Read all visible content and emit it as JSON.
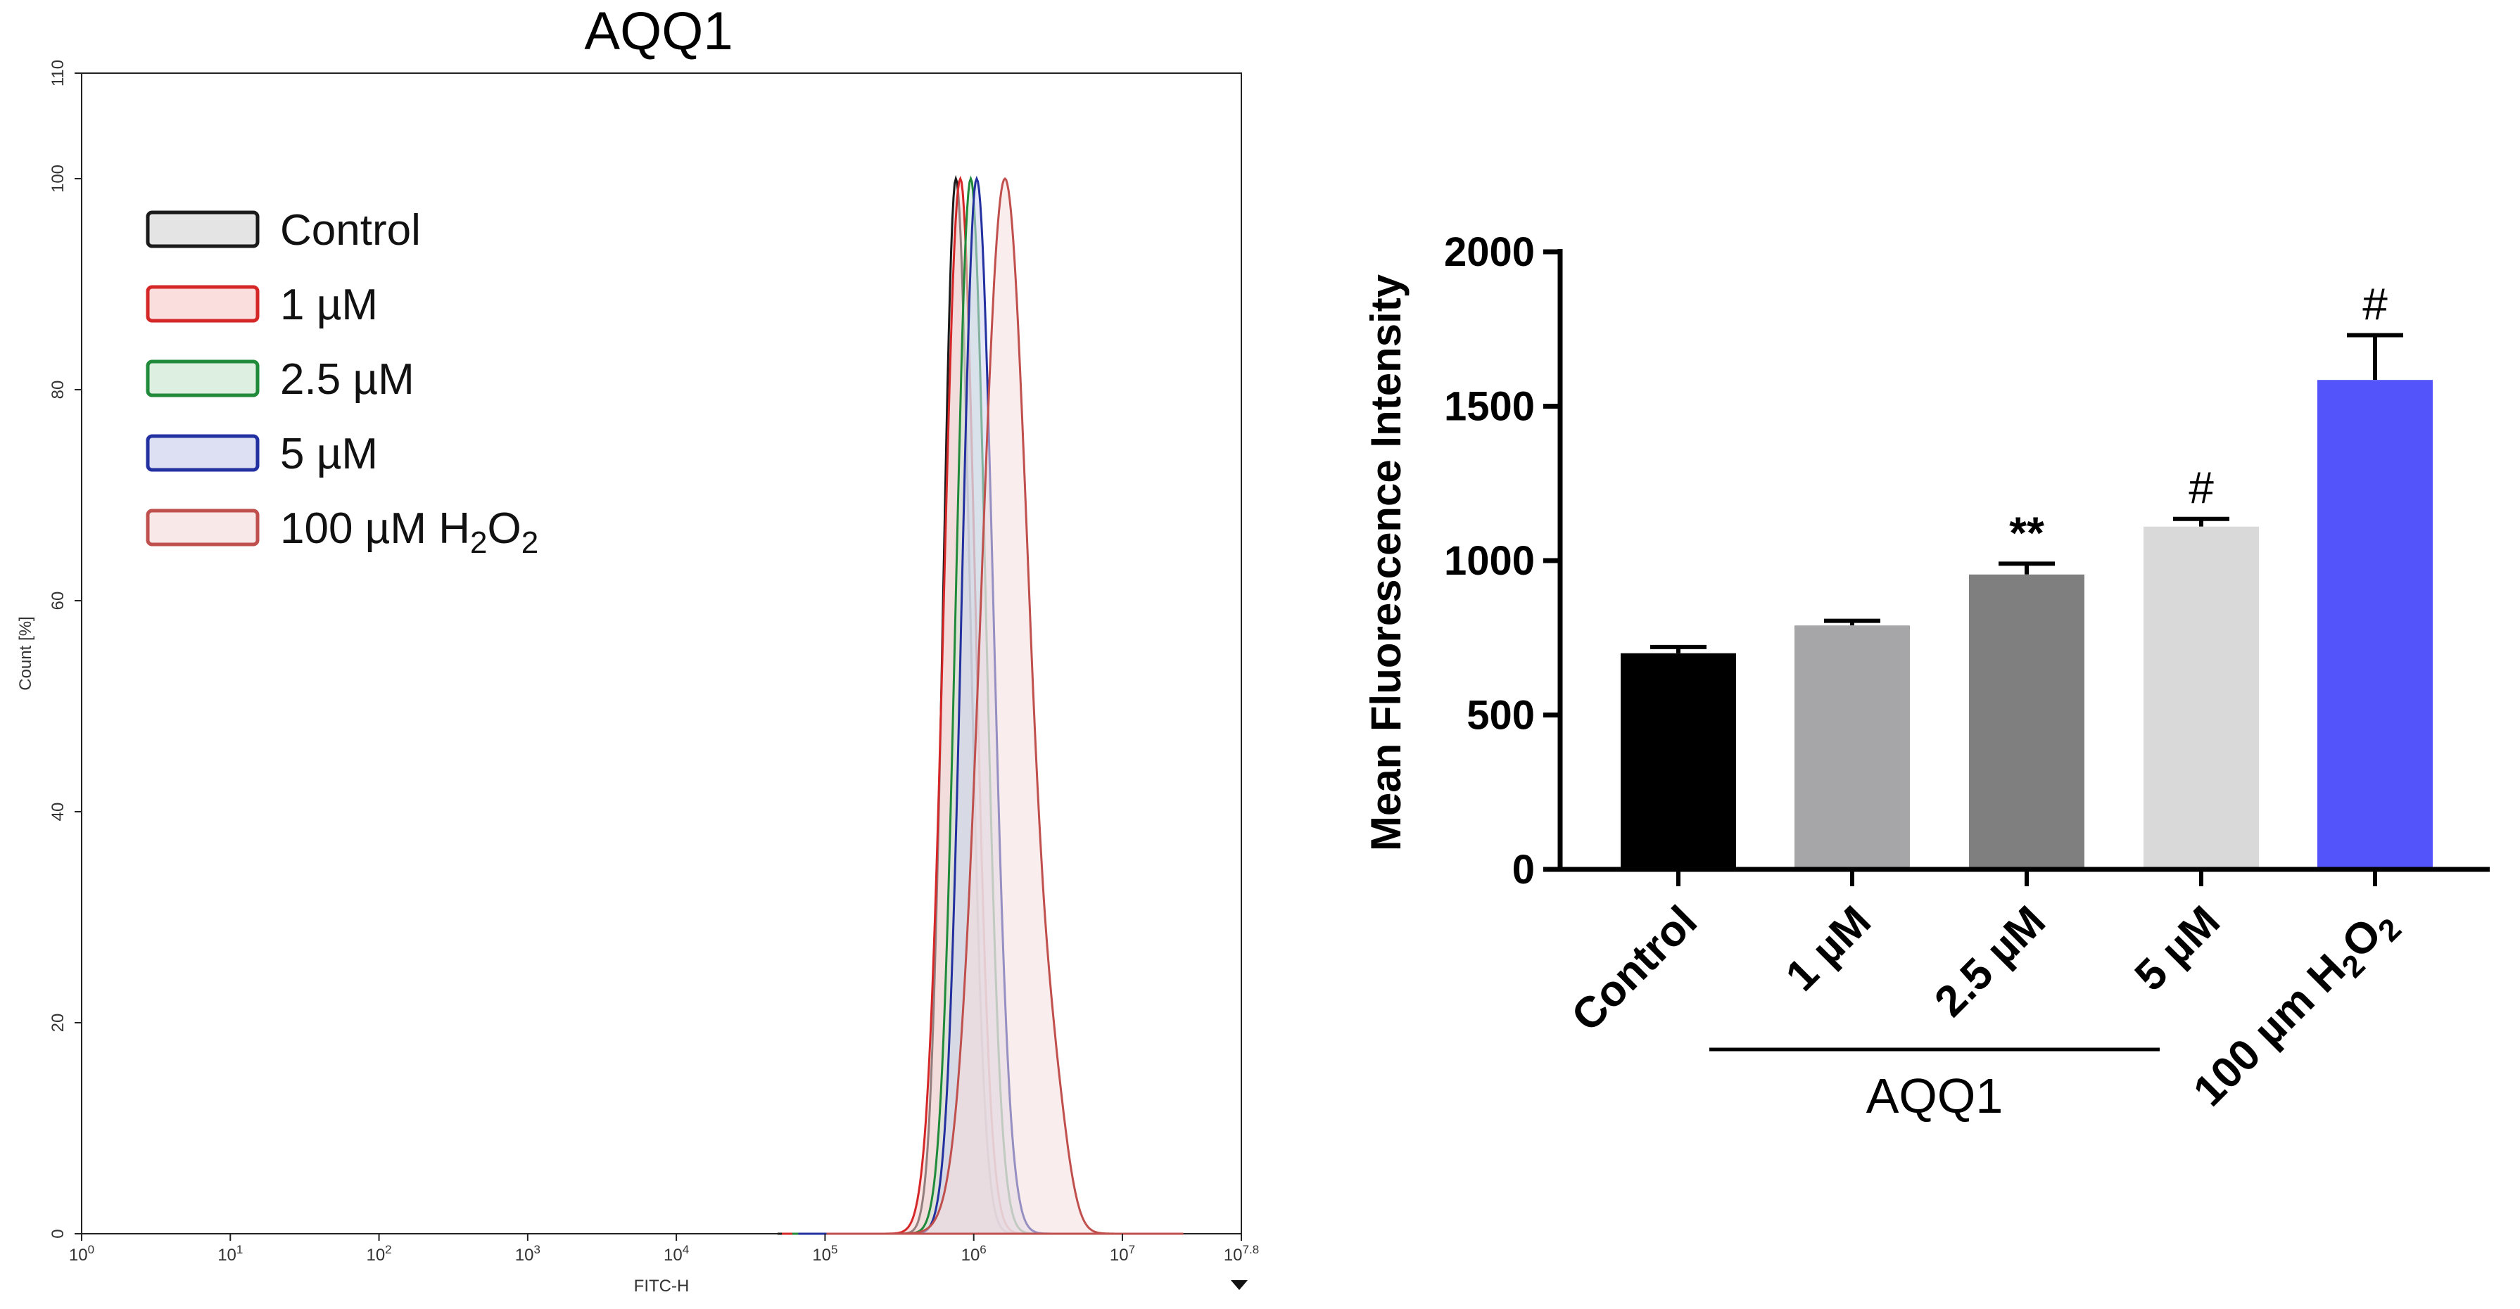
{
  "chart_data": [
    {
      "type": "area",
      "title": "AQQ1",
      "xlabel": "FITC-H",
      "ylabel": "Count [%]",
      "x_scale": "log10",
      "xlim": [
        0,
        7.8
      ],
      "ylim": [
        0,
        110
      ],
      "x_ticks": [
        {
          "exp": 0,
          "base": "10",
          "sup": "0"
        },
        {
          "exp": 1,
          "base": "10",
          "sup": "1"
        },
        {
          "exp": 2,
          "base": "10",
          "sup": "2"
        },
        {
          "exp": 3,
          "base": "10",
          "sup": "3"
        },
        {
          "exp": 4,
          "base": "10",
          "sup": "4"
        },
        {
          "exp": 5,
          "base": "10",
          "sup": "5"
        },
        {
          "exp": 6,
          "base": "10",
          "sup": "6"
        },
        {
          "exp": 7,
          "base": "10",
          "sup": "7"
        },
        {
          "exp": 7.8,
          "base": "10",
          "sup": "7.8"
        }
      ],
      "y_ticks": [
        0,
        20,
        40,
        60,
        80,
        100,
        110
      ],
      "series": [
        {
          "name": "Control",
          "label": "Control",
          "stroke": "#1a1a1a",
          "fill": "#d9d9d9",
          "peak_log": 5.88,
          "sigma_left": 0.085,
          "sigma_right": 0.095
        },
        {
          "name": "1 µM",
          "label": "1 µM",
          "stroke": "#d62728",
          "fill": "#f8d0d0",
          "peak_log": 5.91,
          "sigma_left": 0.11,
          "sigma_right": 0.1
        },
        {
          "name": "2.5 µM",
          "label": "2.5 µM",
          "stroke": "#1f8a3a",
          "fill": "#cfe8d4",
          "peak_log": 5.98,
          "sigma_left": 0.1,
          "sigma_right": 0.1
        },
        {
          "name": "5 µM",
          "label": "5 µM",
          "stroke": "#2230a0",
          "fill": "#cfd3ee",
          "peak_log": 6.02,
          "sigma_left": 0.1,
          "sigma_right": 0.11
        },
        {
          "name": "100 µM H2O2",
          "label": "100 µM H",
          "label_sub1": "2",
          "label_mid": "O",
          "label_sub2": "2",
          "stroke": "#c0504d",
          "fill": "#f6dede",
          "peak_log": 6.21,
          "sigma_left": 0.16,
          "sigma_right": 0.16
        }
      ]
    },
    {
      "type": "bar",
      "ylabel": "Mean Fluorescence Intensity",
      "ylim": [
        0,
        2000
      ],
      "y_ticks": [
        0,
        500,
        1000,
        1500,
        2000
      ],
      "categories": [
        "Control",
        "1 µM",
        "2.5 µM",
        "5 µM",
        "100 µm H2O2"
      ],
      "category_labels": [
        {
          "text": "Control"
        },
        {
          "text": "1 µM"
        },
        {
          "text": "2.5 µM"
        },
        {
          "text": "5 µM"
        },
        {
          "text": "100 µm H",
          "sub1": "2",
          "mid": "O",
          "sub2": "2"
        }
      ],
      "values": [
        700,
        790,
        955,
        1110,
        1585
      ],
      "errors": [
        20,
        15,
        35,
        25,
        145
      ],
      "significance": [
        "",
        "",
        "**",
        "#",
        "#"
      ],
      "colors": [
        "#000000",
        "#a6a6a8",
        "#7f7f7f",
        "#d9d9d9",
        "#5454fb"
      ],
      "group_label": "AQQ1",
      "group_span": [
        1,
        3
      ]
    }
  ]
}
